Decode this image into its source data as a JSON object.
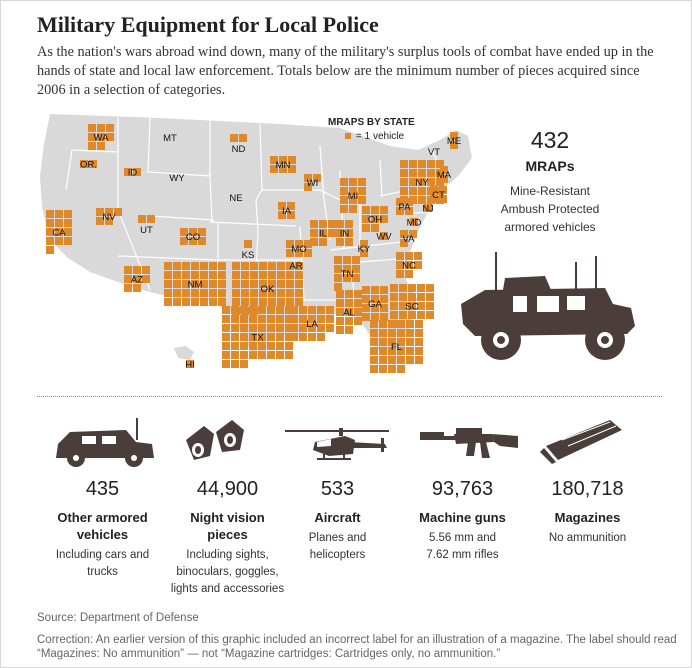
{
  "title": "Military Equipment for Local Police",
  "subtitle": "As the nation's wars abroad wind down, many of the military's surplus tools of combat have ended up in the hands of state and local law enforcement. Totals below are the minimum number of pieces acquired since 2006 in a selection of categories.",
  "legend": {
    "title": "MRAPS BY STATE",
    "unit_label": "= 1 vehicle"
  },
  "mrap": {
    "value": "432",
    "label": "MRAPs",
    "desc_lines": [
      "Mine-Resistant",
      "Ambush Protected",
      "armored vehicles"
    ]
  },
  "states": [
    {
      "abbr": "WA",
      "count": 8
    },
    {
      "abbr": "OR.",
      "count": 2
    },
    {
      "abbr": "CA",
      "count": 13
    },
    {
      "abbr": "NV",
      "count": 5
    },
    {
      "abbr": "ID",
      "count": 2
    },
    {
      "abbr": "MT",
      "count": 0
    },
    {
      "abbr": "WY",
      "count": 0
    },
    {
      "abbr": "UT",
      "count": 2
    },
    {
      "abbr": "CO",
      "count": 6
    },
    {
      "abbr": "AZ",
      "count": 8
    },
    {
      "abbr": "NM",
      "count": 35
    },
    {
      "abbr": "ND",
      "count": 2
    },
    {
      "abbr": "NE",
      "count": 0
    },
    {
      "abbr": "KS",
      "count": 1
    },
    {
      "abbr": "OK",
      "count": 43
    },
    {
      "abbr": "TX",
      "count": 51
    },
    {
      "abbr": "MN",
      "count": 6
    },
    {
      "abbr": "IA",
      "count": 4
    },
    {
      "abbr": "MO",
      "count": 6
    },
    {
      "abbr": "AR",
      "count": 0
    },
    {
      "abbr": "LA",
      "count": 19
    },
    {
      "abbr": "WI",
      "count": 3
    },
    {
      "abbr": "IL",
      "count": 8
    },
    {
      "abbr": "MI",
      "count": 11
    },
    {
      "abbr": "IN",
      "count": 6
    },
    {
      "abbr": "OH",
      "count": 8
    },
    {
      "abbr": "KY",
      "count": 2
    },
    {
      "abbr": "TN",
      "count": 10
    },
    {
      "abbr": "AL",
      "count": 14
    },
    {
      "abbr": "GA",
      "count": 12
    },
    {
      "abbr": "FL",
      "count": 34
    },
    {
      "abbr": "SC",
      "count": 21
    },
    {
      "abbr": "NC",
      "count": 8
    },
    {
      "abbr": "VA",
      "count": 3
    },
    {
      "abbr": "WV",
      "count": 1
    },
    {
      "abbr": "PA",
      "count": 4
    },
    {
      "abbr": "NY",
      "count": 25
    },
    {
      "abbr": "NJ",
      "count": 1
    },
    {
      "abbr": "MD",
      "count": 1
    },
    {
      "abbr": "CT",
      "count": 4
    },
    {
      "abbr": "MA",
      "count": 2
    },
    {
      "abbr": "VT",
      "count": 0
    },
    {
      "abbr": "ME",
      "count": 2
    },
    {
      "abbr": "HI",
      "count": 1
    }
  ],
  "categories": [
    {
      "value": "435",
      "label_lines": [
        "Other armored",
        "vehicles"
      ],
      "desc_lines": [
        "Including cars and",
        "trucks"
      ],
      "icon": "humvee-icon"
    },
    {
      "value": "44,900",
      "label_lines": [
        "Night vision",
        "pieces"
      ],
      "desc_lines": [
        "Including sights,",
        "binoculars, goggles,",
        "lights and accessories"
      ],
      "icon": "night-vision-icon"
    },
    {
      "value": "533",
      "label_lines": [
        "Aircraft"
      ],
      "desc_lines": [
        "Planes and",
        "helicopters"
      ],
      "icon": "helicopter-icon"
    },
    {
      "value": "93,763",
      "label_lines": [
        "Machine guns"
      ],
      "desc_lines": [
        "5.56 mm and",
        "7.62 mm rifles"
      ],
      "icon": "machine-gun-icon"
    },
    {
      "value": "180,718",
      "label_lines": [
        "Magazines"
      ],
      "desc_lines": [
        "No ammunition"
      ],
      "icon": "magazine-icon"
    }
  ],
  "source": "Source: Department of Defense",
  "correction": "Correction: An earlier version of this graphic included an incorrect label for an illustration of a magazine. The label should read “Magazines: No ammunition” — not “Magazine cartridges: Cartridges only, no ammunition.”",
  "colors": {
    "map": "#d9d9d9",
    "square": "#e0892b",
    "square_border": "#ffffff",
    "icon": "#4a3d3a"
  }
}
